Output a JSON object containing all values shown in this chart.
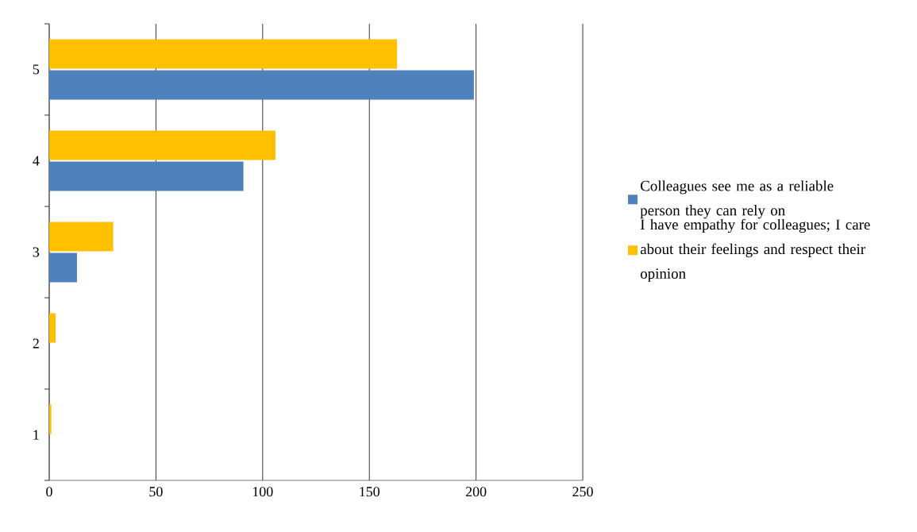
{
  "chart_data": {
    "type": "bar",
    "orientation": "horizontal",
    "categories": [
      "5",
      "4",
      "3",
      "2",
      "1"
    ],
    "series": [
      {
        "name": "Colleagues see me as a reliable person they can rely on",
        "color": "#4f81bd",
        "values": [
          199,
          91,
          13,
          0,
          0
        ]
      },
      {
        "name": "I have empathy for colleagues; I care about their feelings and respect their opinion",
        "color": "#ffc000",
        "values": [
          163,
          106,
          30,
          3,
          1
        ]
      }
    ],
    "xlim": [
      0,
      250
    ],
    "xticks": [
      0,
      50,
      100,
      150,
      200,
      250
    ],
    "grid": "x",
    "legend": "right"
  }
}
